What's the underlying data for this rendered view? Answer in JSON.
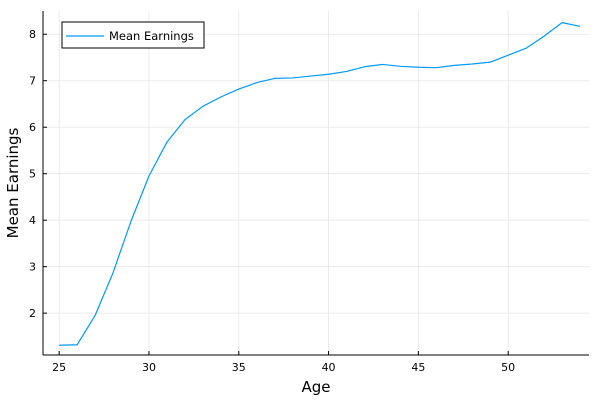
{
  "chart_data": {
    "type": "line",
    "xlabel": "Age",
    "ylabel": "Mean Earnings",
    "xlim": [
      24.1,
      54.5
    ],
    "ylim": [
      1.1,
      8.5
    ],
    "xticks": [
      25,
      30,
      35,
      40,
      45,
      50
    ],
    "yticks": [
      2,
      3,
      4,
      5,
      6,
      7,
      8
    ],
    "grid": true,
    "legend_position": "top-left",
    "series": [
      {
        "name": "Mean Earnings",
        "color": "#009af9",
        "x": [
          25,
          26,
          27,
          28,
          29,
          30,
          31,
          32,
          33,
          34,
          35,
          36,
          37,
          38,
          39,
          40,
          41,
          42,
          43,
          44,
          45,
          46,
          47,
          48,
          49,
          50,
          51,
          52,
          53,
          54
        ],
        "y": [
          1.31,
          1.32,
          1.95,
          2.87,
          3.98,
          4.95,
          5.68,
          6.16,
          6.45,
          6.65,
          6.82,
          6.96,
          7.05,
          7.06,
          7.1,
          7.14,
          7.2,
          7.3,
          7.35,
          7.31,
          7.29,
          7.28,
          7.33,
          7.36,
          7.4,
          7.55,
          7.7,
          7.96,
          8.25,
          8.17
        ]
      }
    ]
  }
}
